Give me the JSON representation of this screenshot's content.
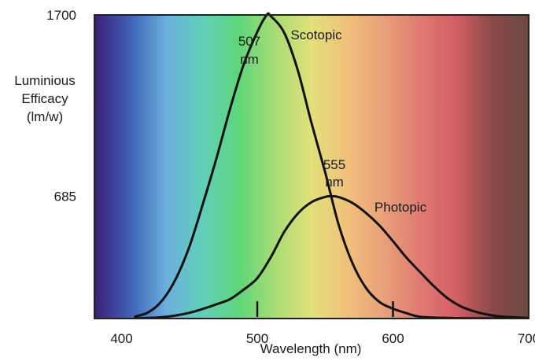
{
  "chart_data": {
    "type": "line",
    "xlabel": "Wavelength (nm)",
    "ylabel_lines": [
      "Luminious",
      "Efficacy",
      "(lm/w)"
    ],
    "xlim": [
      380,
      700
    ],
    "ylim": [
      0,
      1700
    ],
    "x_ticks": [
      "400",
      "500",
      "600",
      "700"
    ],
    "y_ticks": [
      "1700",
      "685"
    ],
    "spectrum_colors": [
      "#3d1f77",
      "#3f62b8",
      "#6bb0dd",
      "#5fd0b8",
      "#5ed67a",
      "#a8dd73",
      "#e2e07a",
      "#f0c07b",
      "#e9a07a",
      "#e07a72",
      "#d25f64",
      "#8a4a48",
      "#6b4a44"
    ],
    "series": [
      {
        "name": "Scotopic",
        "peak_label_lines": [
          "507",
          "nm"
        ],
        "x": [
          410,
          420,
          430,
          440,
          450,
          460,
          470,
          480,
          490,
          500,
          507,
          510,
          520,
          530,
          540,
          550,
          560,
          570,
          580,
          590,
          600,
          610,
          620,
          640,
          660,
          700
        ],
        "y": [
          11,
          36,
          102,
          223,
          404,
          644,
          900,
          1176,
          1423,
          1605,
          1700,
          1693,
          1598,
          1386,
          1093,
          819,
          524,
          312,
          172,
          93,
          55,
          30,
          10,
          3,
          1,
          0
        ]
      },
      {
        "name": "Photopic",
        "peak_label_lines": [
          "555",
          "nm"
        ],
        "x": [
          410,
          420,
          430,
          440,
          450,
          460,
          470,
          480,
          490,
          500,
          510,
          520,
          530,
          540,
          550,
          555,
          560,
          570,
          580,
          590,
          600,
          610,
          620,
          630,
          640,
          650,
          660,
          670,
          680,
          700
        ],
        "y": [
          1,
          3,
          8,
          17,
          32,
          54,
          80,
          109,
          162,
          226,
          344,
          487,
          589,
          652,
          681,
          685,
          680,
          648,
          592,
          521,
          433,
          340,
          260,
          182,
          115,
          68,
          40,
          22,
          11,
          3
        ]
      }
    ]
  }
}
